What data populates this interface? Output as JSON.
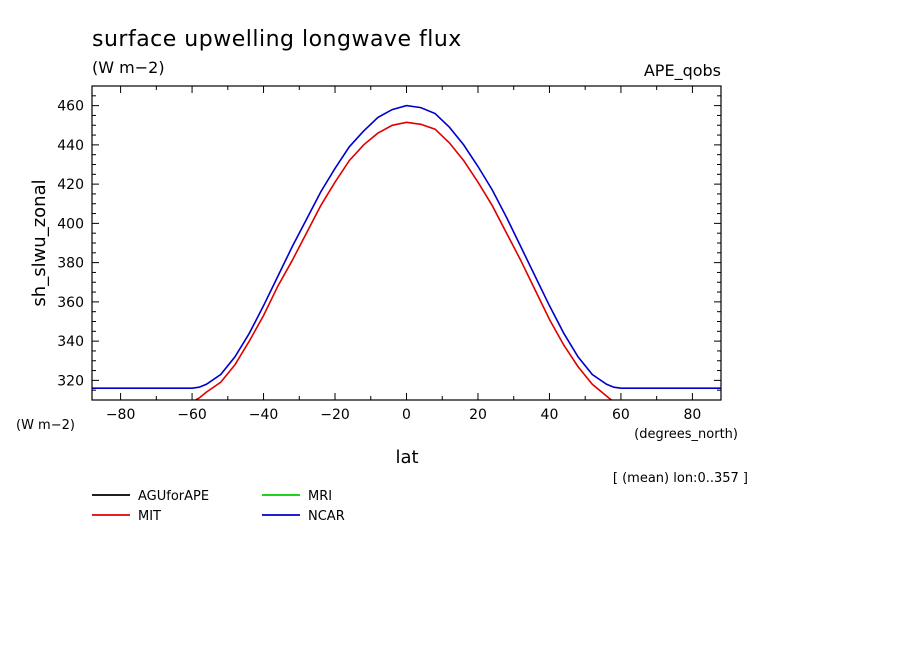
{
  "header": {
    "title": "surface upwelling longwave flux",
    "units": "(W m−2)",
    "dataset": "APE_qobs"
  },
  "axes": {
    "y_units": "(W m−2)",
    "x_units": "(degrees_north)",
    "note": "[ (mean) lon:0..357 ]"
  },
  "chart_data": {
    "type": "line",
    "title": "surface upwelling longwave flux",
    "xlabel": "lat",
    "ylabel": "sh_slwu_zonal",
    "xlim": [
      -88,
      88
    ],
    "ylim": [
      310,
      470
    ],
    "xticks": [
      -80,
      -60,
      -40,
      -20,
      0,
      20,
      40,
      60,
      80
    ],
    "yticks": [
      320,
      340,
      360,
      380,
      400,
      420,
      440,
      460
    ],
    "grid": false,
    "legend_position": "bottom",
    "series": [
      {
        "name": "AGUforAPE",
        "color": "#000000",
        "x": [],
        "y": []
      },
      {
        "name": "MRI",
        "color": "#00cc00",
        "x": [],
        "y": []
      },
      {
        "name": "MIT",
        "color": "#e00000",
        "x": [
          -88,
          -60,
          -58,
          -56,
          -52,
          -48,
          -44,
          -40,
          -36,
          -32,
          -28,
          -24,
          -20,
          -16,
          -12,
          -8,
          -4,
          0,
          4,
          8,
          12,
          16,
          20,
          24,
          28,
          32,
          36,
          40,
          44,
          48,
          52,
          56,
          58,
          60,
          88
        ],
        "y": [
          308,
          309,
          311,
          314,
          319,
          328,
          340,
          353,
          368,
          381,
          395,
          409,
          421,
          432,
          440,
          446,
          450,
          451.5,
          450.5,
          448,
          441,
          432,
          421,
          409,
          395,
          381,
          366,
          351,
          338,
          327,
          318,
          312,
          309,
          308,
          308
        ]
      },
      {
        "name": "NCAR",
        "color": "#0000cc",
        "x": [
          -88,
          -60,
          -58,
          -56,
          -52,
          -48,
          -44,
          -40,
          -36,
          -32,
          -28,
          -24,
          -20,
          -16,
          -12,
          -8,
          -4,
          0,
          4,
          8,
          12,
          16,
          20,
          24,
          28,
          32,
          36,
          40,
          44,
          48,
          52,
          56,
          58,
          60,
          88
        ],
        "y": [
          316,
          316,
          316.5,
          318,
          323,
          332,
          344,
          358,
          373,
          388,
          402,
          416,
          428,
          439,
          447,
          454,
          458,
          460,
          459,
          456,
          449,
          440,
          429,
          417,
          403,
          388,
          373,
          358,
          344,
          332,
          323,
          318,
          316.5,
          316,
          316
        ]
      }
    ]
  }
}
